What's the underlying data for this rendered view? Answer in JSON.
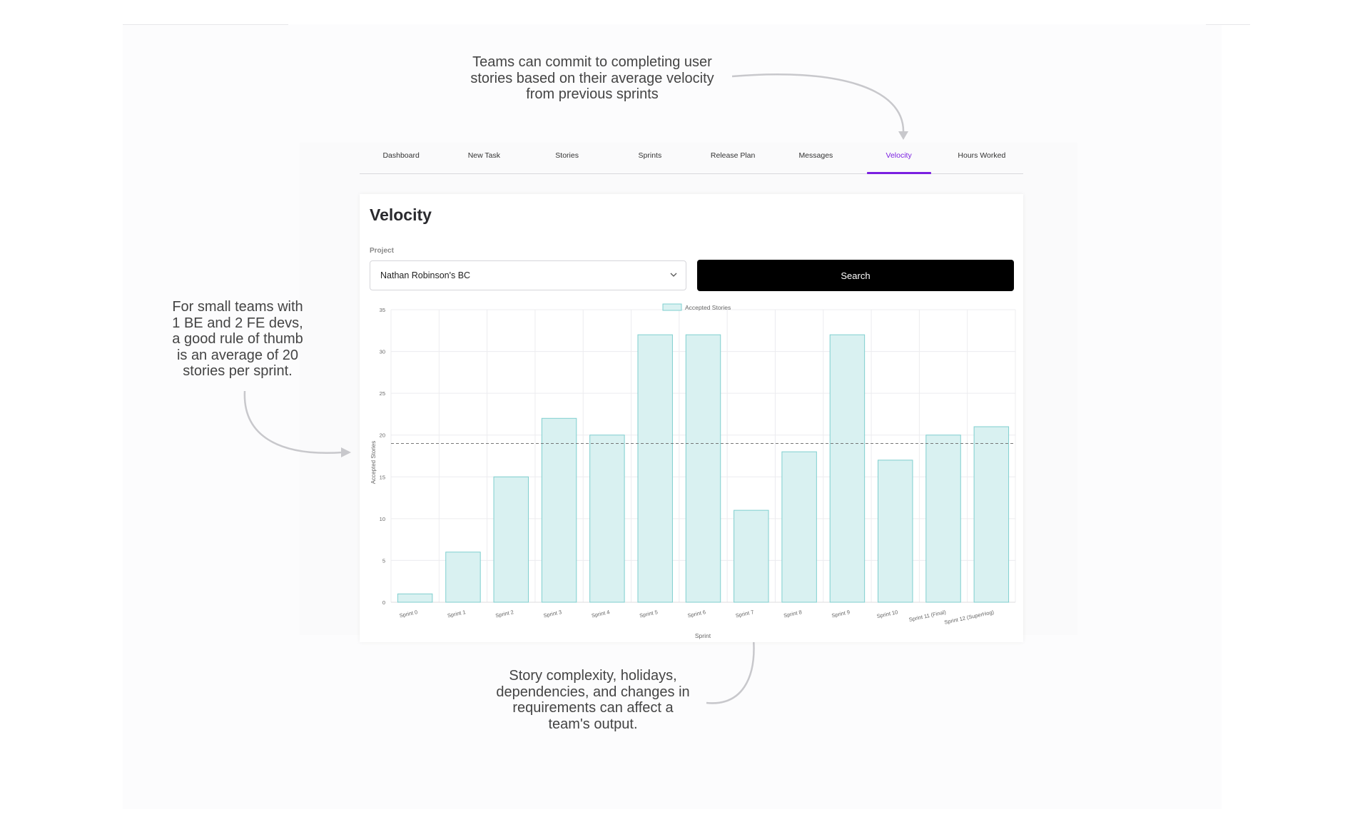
{
  "annotations": {
    "top": [
      "Teams can commit to completing user",
      "stories based on their average velocity",
      "from previous sprints"
    ],
    "left": [
      "For small teams with",
      "1 BE and 2 FE devs,",
      "a good rule of thumb",
      "is an average of 20",
      "stories per sprint."
    ],
    "bottom": [
      "Story complexity, holidays,",
      "dependencies, and changes in",
      "requirements can affect a",
      "team's output."
    ]
  },
  "tabs": [
    {
      "label": "Dashboard",
      "active": false
    },
    {
      "label": "New Task",
      "active": false
    },
    {
      "label": "Stories",
      "active": false
    },
    {
      "label": "Sprints",
      "active": false
    },
    {
      "label": "Release Plan",
      "active": false
    },
    {
      "label": "Messages",
      "active": false
    },
    {
      "label": "Velocity",
      "active": true
    },
    {
      "label": "Hours Worked",
      "active": false
    }
  ],
  "page": {
    "title": "Velocity",
    "project_label": "Project",
    "project_value": "Nathan Robinson's BC",
    "search_label": "Search"
  },
  "colors": {
    "accent": "#7a1fe0",
    "bar_fill": "#d9f1f1",
    "bar_stroke": "#7fcfcf"
  },
  "chart_data": {
    "type": "bar",
    "categories": [
      "Sprint 0",
      "Sprint 1",
      "Sprint 2",
      "Sprint 3",
      "Sprint 4",
      "Sprint 5",
      "Sprint 6",
      "Sprint 7",
      "Sprint 8",
      "Sprint 9",
      "Sprint 10",
      "Sprint 11 (Final)",
      "Sprint 12 (SuperHog)"
    ],
    "series": [
      {
        "name": "Accepted Stories",
        "values": [
          1,
          6,
          15,
          22,
          20,
          32,
          32,
          11,
          18,
          32,
          17,
          20,
          21
        ]
      }
    ],
    "reference_line": 19,
    "xlabel": "Sprint",
    "ylabel": "Accepted Stories",
    "ylim": [
      0,
      35
    ],
    "yticks": [
      0,
      5,
      10,
      15,
      20,
      25,
      30,
      35
    ],
    "grid": true,
    "legend": "top-center"
  }
}
